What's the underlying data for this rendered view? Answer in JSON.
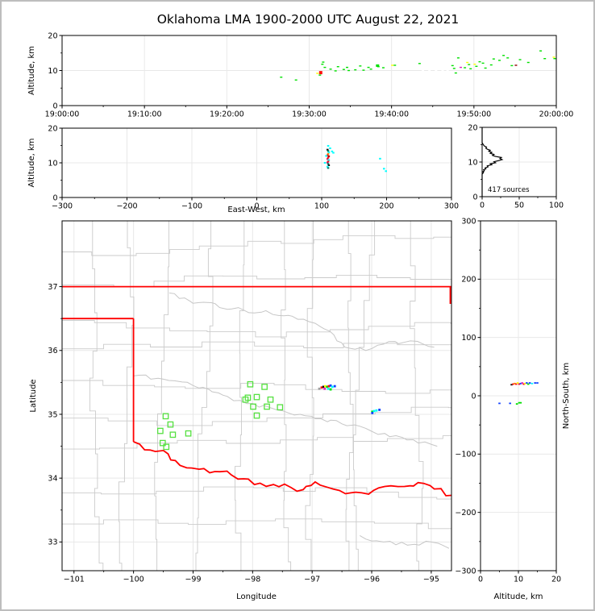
{
  "figure": {
    "title": "Oklahoma LMA 1900-2000 UTC August 22, 2021",
    "background": "#ffffff",
    "frame_color": "#bdbdbd"
  },
  "palette": {
    "green": "#00e000",
    "yellow": "#ffff00",
    "red": "#ff1010",
    "darkred": "#8b0000",
    "magenta": "#e020c0",
    "white": "#ffffff",
    "cyan": "#00ffff",
    "teal": "#00806f",
    "orange": "#ff8c00",
    "crimson": "#d01050",
    "black": "#101010",
    "blue": "#1040ff",
    "gray": "#9e9e9e",
    "station_green": "#55e040",
    "state_border": "#ff0000",
    "county": "#cbcbcb",
    "grid": "#e8e8e8",
    "histogram_line": "#000000"
  },
  "chart_data": [
    {
      "id": "time_height",
      "type": "scatter",
      "xlabel": "",
      "ylabel": "Altitude, km",
      "x_tick_values": [
        0,
        10,
        20,
        30,
        40,
        50,
        60
      ],
      "x_tick_labels": [
        "19:00:00",
        "19:10:00",
        "19:20:00",
        "19:30:00",
        "19:40:00",
        "19:50:00",
        "20:00:00"
      ],
      "xlim_minutes": [
        0,
        60
      ],
      "ylim": [
        0,
        20
      ],
      "y_tick_values": [
        0,
        10,
        20
      ],
      "y_tick_labels": [
        "0",
        "10",
        "20"
      ],
      "grid": true,
      "points": [
        [
          26.6,
          8.1,
          "green"
        ],
        [
          28.4,
          7.3,
          "green"
        ],
        [
          31.0,
          9.2,
          "yellow"
        ],
        [
          31.4,
          9.4,
          "red",
          4,
          4
        ],
        [
          31.3,
          8.7,
          "green"
        ],
        [
          31.6,
          11.8,
          "green"
        ],
        [
          31.7,
          12.4,
          "green"
        ],
        [
          31.9,
          10.9,
          "green"
        ],
        [
          32.6,
          10.4,
          "green"
        ],
        [
          33.2,
          9.9,
          "green"
        ],
        [
          33.5,
          11.1,
          "green"
        ],
        [
          34.2,
          10.3,
          "green"
        ],
        [
          34.6,
          10.9,
          "green"
        ],
        [
          34.8,
          10.0,
          "green"
        ],
        [
          35.6,
          10.2,
          "green"
        ],
        [
          36.2,
          11.3,
          "green"
        ],
        [
          36.6,
          10.1,
          "green"
        ],
        [
          37.2,
          10.9,
          "green"
        ],
        [
          37.5,
          10.4,
          "green"
        ],
        [
          38.3,
          11.4,
          "green",
          4,
          3
        ],
        [
          38.4,
          11.1,
          "green"
        ],
        [
          39.0,
          10.8,
          "green"
        ],
        [
          40.1,
          11.5,
          "yellow"
        ],
        [
          40.4,
          11.5,
          "green"
        ],
        [
          43.4,
          12.0,
          "green"
        ],
        [
          43.8,
          10.0,
          "white"
        ],
        [
          44.6,
          10.0,
          "white"
        ],
        [
          45.4,
          10.0,
          "white"
        ],
        [
          46.2,
          10.0,
          "white"
        ],
        [
          46.8,
          10.0,
          "white"
        ],
        [
          47.4,
          11.4,
          "green"
        ],
        [
          47.6,
          10.6,
          "green"
        ],
        [
          47.8,
          9.3,
          "green"
        ],
        [
          48.1,
          13.6,
          "green"
        ],
        [
          48.4,
          10.9,
          "magenta"
        ],
        [
          48.9,
          10.8,
          "green"
        ],
        [
          49.2,
          12.3,
          "yellow"
        ],
        [
          49.4,
          11.7,
          "green"
        ],
        [
          49.6,
          10.5,
          "green"
        ],
        [
          50.1,
          11.8,
          "yellow"
        ],
        [
          50.3,
          11.2,
          "green"
        ],
        [
          50.7,
          12.5,
          "green"
        ],
        [
          51.1,
          12.1,
          "green"
        ],
        [
          51.4,
          10.7,
          "green"
        ],
        [
          52.1,
          11.6,
          "green"
        ],
        [
          52.4,
          13.3,
          "green"
        ],
        [
          53.1,
          12.9,
          "green"
        ],
        [
          53.6,
          14.3,
          "green"
        ],
        [
          54.1,
          13.6,
          "green"
        ],
        [
          54.6,
          11.4,
          "green"
        ],
        [
          55.1,
          11.5,
          "darkred"
        ],
        [
          55.6,
          13.1,
          "green"
        ],
        [
          56.6,
          12.3,
          "green"
        ],
        [
          58.1,
          15.6,
          "green"
        ],
        [
          58.6,
          13.4,
          "green"
        ],
        [
          59.7,
          13.8,
          "yellow"
        ],
        [
          59.8,
          13.4,
          "green"
        ]
      ]
    },
    {
      "id": "ew_height",
      "type": "scatter",
      "xlabel": "East-West, km",
      "ylabel": "Altitude, km",
      "xlim": [
        -300,
        300
      ],
      "x_tick_values": [
        -300,
        -200,
        -100,
        0,
        100,
        200,
        300
      ],
      "x_tick_labels": [
        "−300",
        "−200",
        "−100",
        "0",
        "100",
        "200",
        "300"
      ],
      "ylim": [
        0,
        20
      ],
      "y_tick_values": [
        0,
        10,
        20
      ],
      "y_tick_labels": [
        "0",
        "10",
        "20"
      ],
      "grid": true,
      "points": [
        [
          110,
          14.9,
          "cyan"
        ],
        [
          113,
          14.2,
          "cyan"
        ],
        [
          109,
          13.8,
          "black"
        ],
        [
          110,
          13.4,
          "teal"
        ],
        [
          111,
          13.0,
          "cyan"
        ],
        [
          110,
          12.6,
          "orange"
        ],
        [
          109,
          12.2,
          "red"
        ],
        [
          111,
          11.9,
          "darkred"
        ],
        [
          110,
          11.5,
          "red"
        ],
        [
          109,
          11.1,
          "crimson"
        ],
        [
          111,
          10.8,
          "cyan"
        ],
        [
          110,
          10.4,
          "red"
        ],
        [
          109,
          10.1,
          "crimson"
        ],
        [
          110,
          9.7,
          "teal"
        ],
        [
          111,
          9.3,
          "black"
        ],
        [
          109,
          8.9,
          "cyan"
        ],
        [
          110,
          8.5,
          "teal"
        ],
        [
          105,
          10.0,
          "cyan"
        ],
        [
          116,
          13.3,
          "cyan"
        ],
        [
          118,
          12.9,
          "cyan"
        ],
        [
          107,
          12.0,
          "cyan"
        ],
        [
          190,
          11.2,
          "cyan"
        ],
        [
          196,
          8.3,
          "cyan"
        ],
        [
          199,
          7.6,
          "cyan"
        ]
      ]
    },
    {
      "id": "source_histogram",
      "type": "line",
      "annotation": "417 sources",
      "xlim": [
        0,
        100
      ],
      "x_tick_values": [
        0,
        50,
        100
      ],
      "x_tick_labels": [
        "0",
        "50",
        "100"
      ],
      "ylim": [
        0,
        20
      ],
      "y_tick_values": [
        0,
        10,
        20
      ],
      "y_tick_labels": [
        "0",
        "10",
        "20"
      ],
      "grid": true,
      "profile_alt_count": [
        [
          0,
          0
        ],
        [
          6.5,
          0
        ],
        [
          7.0,
          2
        ],
        [
          7.2,
          1
        ],
        [
          7.5,
          3
        ],
        [
          7.8,
          2
        ],
        [
          8.0,
          5
        ],
        [
          8.3,
          4
        ],
        [
          8.6,
          8
        ],
        [
          8.9,
          7
        ],
        [
          9.2,
          13
        ],
        [
          9.5,
          11
        ],
        [
          9.8,
          18
        ],
        [
          10.1,
          16
        ],
        [
          10.4,
          22
        ],
        [
          10.7,
          27
        ],
        [
          11.0,
          24
        ],
        [
          11.3,
          26
        ],
        [
          11.6,
          18
        ],
        [
          11.9,
          14
        ],
        [
          12.2,
          16
        ],
        [
          12.5,
          11
        ],
        [
          12.8,
          13
        ],
        [
          13.1,
          9
        ],
        [
          13.4,
          11
        ],
        [
          13.7,
          7
        ],
        [
          14.0,
          5
        ],
        [
          14.3,
          6
        ],
        [
          14.6,
          3
        ],
        [
          14.9,
          2
        ],
        [
          15.2,
          1
        ],
        [
          15.6,
          0
        ],
        [
          20,
          0
        ]
      ]
    },
    {
      "id": "plan_view",
      "type": "scatter",
      "xlabel": "Longitude",
      "ylabel": "Latitude",
      "xlim": [
        -101.2,
        -94.66
      ],
      "x_tick_values": [
        -101,
        -100,
        -99,
        -98,
        -97,
        -96,
        -95
      ],
      "x_tick_labels": [
        "−101",
        "−100",
        "−99",
        "−98",
        "−97",
        "−96",
        "−95"
      ],
      "ylim": [
        32.55,
        38.03
      ],
      "y_tick_values": [
        33,
        34,
        35,
        36,
        37
      ],
      "y_tick_labels": [
        "33",
        "34",
        "35",
        "36",
        "37"
      ],
      "grid": true,
      "state_border": [
        [
          [
            -101.2,
            37.0
          ],
          [
            -94.66,
            37.0
          ]
        ],
        [
          [
            -94.68,
            37.0
          ],
          [
            -94.68,
            36.73
          ]
        ],
        [
          [
            -101.2,
            36.5
          ],
          [
            -100.0,
            36.5
          ]
        ],
        [
          [
            -100.0,
            36.5
          ],
          [
            -100.0,
            34.57
          ]
        ]
      ],
      "red_river_border": [
        [
          -100.0,
          34.57
        ],
        [
          -99.72,
          34.44
        ],
        [
          -99.42,
          34.38
        ],
        [
          -99.22,
          34.2
        ],
        [
          -98.9,
          34.14
        ],
        [
          -98.55,
          34.1
        ],
        [
          -98.15,
          33.99
        ],
        [
          -97.97,
          33.9
        ],
        [
          -97.65,
          33.9
        ],
        [
          -97.35,
          33.85
        ],
        [
          -97.15,
          33.82
        ],
        [
          -96.95,
          33.94
        ],
        [
          -96.65,
          33.83
        ],
        [
          -96.35,
          33.77
        ],
        [
          -96.05,
          33.75
        ],
        [
          -95.78,
          33.87
        ],
        [
          -95.45,
          33.87
        ],
        [
          -95.22,
          33.93
        ],
        [
          -94.95,
          33.83
        ],
        [
          -94.66,
          33.73
        ]
      ],
      "rivers": [
        [
          [
            -99.4,
            36.9
          ],
          [
            -98.9,
            36.75
          ],
          [
            -98.35,
            36.65
          ],
          [
            -97.85,
            36.6
          ],
          [
            -97.4,
            36.55
          ],
          [
            -97.05,
            36.45
          ],
          [
            -96.7,
            36.3
          ],
          [
            -96.45,
            36.05
          ],
          [
            -96.1,
            36.0
          ],
          [
            -95.8,
            36.1
          ],
          [
            -95.35,
            36.15
          ],
          [
            -94.95,
            36.05
          ]
        ],
        [
          [
            -100.0,
            35.6
          ],
          [
            -99.5,
            35.55
          ],
          [
            -99.0,
            35.45
          ],
          [
            -98.5,
            35.3
          ],
          [
            -98.0,
            35.17
          ],
          [
            -97.6,
            35.07
          ],
          [
            -97.2,
            35.0
          ],
          [
            -96.85,
            34.93
          ],
          [
            -96.5,
            34.85
          ],
          [
            -96.1,
            34.78
          ],
          [
            -95.7,
            34.65
          ],
          [
            -95.3,
            34.6
          ],
          [
            -94.9,
            34.5
          ]
        ],
        [
          [
            -96.2,
            33.1
          ],
          [
            -95.8,
            33.0
          ],
          [
            -95.4,
            32.95
          ],
          [
            -95.0,
            33.0
          ],
          [
            -94.7,
            32.9
          ]
        ]
      ],
      "stations": [
        [
          -98.04,
          35.47
        ],
        [
          -97.8,
          35.43
        ],
        [
          -98.08,
          35.26
        ],
        [
          -97.93,
          35.27
        ],
        [
          -98.12,
          35.23
        ],
        [
          -97.7,
          35.23
        ],
        [
          -97.99,
          35.12
        ],
        [
          -97.76,
          35.12
        ],
        [
          -97.54,
          35.11
        ],
        [
          -97.93,
          34.98
        ],
        [
          -99.46,
          34.97
        ],
        [
          -99.38,
          34.84
        ],
        [
          -99.55,
          34.74
        ],
        [
          -99.34,
          34.68
        ],
        [
          -99.08,
          34.7
        ],
        [
          -99.51,
          34.55
        ],
        [
          -99.45,
          34.49
        ]
      ],
      "points": [
        [
          -96.88,
          35.4,
          "gray"
        ],
        [
          -96.84,
          35.42,
          "red"
        ],
        [
          -96.81,
          35.43,
          "black"
        ],
        [
          -96.78,
          35.44,
          "yellow"
        ],
        [
          -96.75,
          35.43,
          "green"
        ],
        [
          -96.72,
          35.44,
          "red"
        ],
        [
          -96.69,
          35.45,
          "blue"
        ],
        [
          -96.66,
          35.43,
          "cyan"
        ],
        [
          -96.62,
          35.44,
          "blue"
        ],
        [
          -96.79,
          35.4,
          "magenta"
        ],
        [
          -96.73,
          35.4,
          "cyan"
        ],
        [
          -96.69,
          35.39,
          "green"
        ],
        [
          -95.99,
          35.04,
          "green"
        ],
        [
          -95.96,
          35.05,
          "cyan"
        ],
        [
          -95.92,
          35.06,
          "cyan"
        ],
        [
          -95.87,
          35.07,
          "blue"
        ],
        [
          -95.99,
          35.02,
          "blue"
        ]
      ]
    },
    {
      "id": "height_ns",
      "type": "scatter",
      "xlabel": "Altitude, km",
      "ylabel": "North-South, km",
      "xlim": [
        0,
        20
      ],
      "x_tick_values": [
        0,
        10,
        20
      ],
      "x_tick_labels": [
        "0",
        "10",
        "20"
      ],
      "ylim": [
        -300,
        300
      ],
      "y_tick_values": [
        -300,
        -200,
        -100,
        0,
        100,
        200,
        300
      ],
      "y_tick_labels": [
        "−300",
        "−200",
        "−100",
        "0",
        "100",
        "200",
        "300"
      ],
      "grid": true,
      "points": [
        [
          8.2,
          19,
          "black"
        ],
        [
          8.6,
          20,
          "red"
        ],
        [
          9.0,
          21,
          "orange"
        ],
        [
          9.4,
          20,
          "red"
        ],
        [
          9.8,
          22,
          "yellow"
        ],
        [
          10.2,
          20,
          "red"
        ],
        [
          10.6,
          21,
          "blue"
        ],
        [
          11.0,
          22,
          "magenta"
        ],
        [
          11.4,
          20,
          "red"
        ],
        [
          11.8,
          21,
          "yellow"
        ],
        [
          12.2,
          22,
          "blue"
        ],
        [
          12.6,
          20,
          "green"
        ],
        [
          13.0,
          22,
          "blue"
        ],
        [
          13.6,
          21,
          "cyan"
        ],
        [
          14.4,
          22,
          "blue"
        ],
        [
          15.0,
          22,
          "blue"
        ],
        [
          5.0,
          -13,
          "blue"
        ],
        [
          7.8,
          -13,
          "blue"
        ],
        [
          9.6,
          -14,
          "green"
        ],
        [
          10.2,
          -12,
          "green"
        ],
        [
          10.6,
          -12,
          "green"
        ]
      ]
    }
  ]
}
